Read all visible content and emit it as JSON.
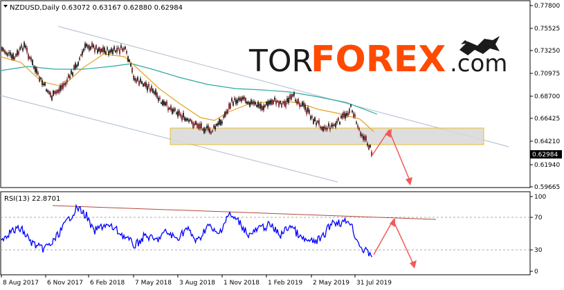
{
  "main_panel": {
    "header": "NZDUSD,Daily  0.63072 0.63167 0.62880 0.62984",
    "price_ticks": [
      "0.77800",
      "0.75525",
      "0.73250",
      "0.70975",
      "0.68700",
      "0.66425",
      "0.64210",
      "0.61940",
      "0.59665"
    ],
    "current_price": "0.62984",
    "watermark": {
      "prefix": "TOR",
      "main": "FOREX",
      "suffix": ".com",
      "logo": "bull-bear-icon"
    }
  },
  "rsi_panel": {
    "header": "RSI(13) 22.8701",
    "ticks": [
      "100",
      "70",
      "30",
      "0"
    ]
  },
  "x_axis": {
    "labels": [
      "8 Aug 2017",
      "6 Nov 2017",
      "6 Feb 2018",
      "7 May 2018",
      "3 Aug 2018",
      "1 Nov 2018",
      "1 Feb 2019",
      "2 May 2019",
      "31 Jul 2019"
    ]
  },
  "colors": {
    "candle_bull": "#6b0d12",
    "candle_bear": "#000000",
    "ma_fast": "#e8a020",
    "ma_slow": "#2aa8a0",
    "channel": "#b9c6d4",
    "zone_fill": "#d9d9d9",
    "zone_border": "#e8b400",
    "arrow": "#f05a5a",
    "rsi_line": "#0000ff",
    "rsi_trend": "#b04a3a",
    "brand_dark": "#1b1b1b",
    "brand_orange": "#ff4a00"
  }
}
